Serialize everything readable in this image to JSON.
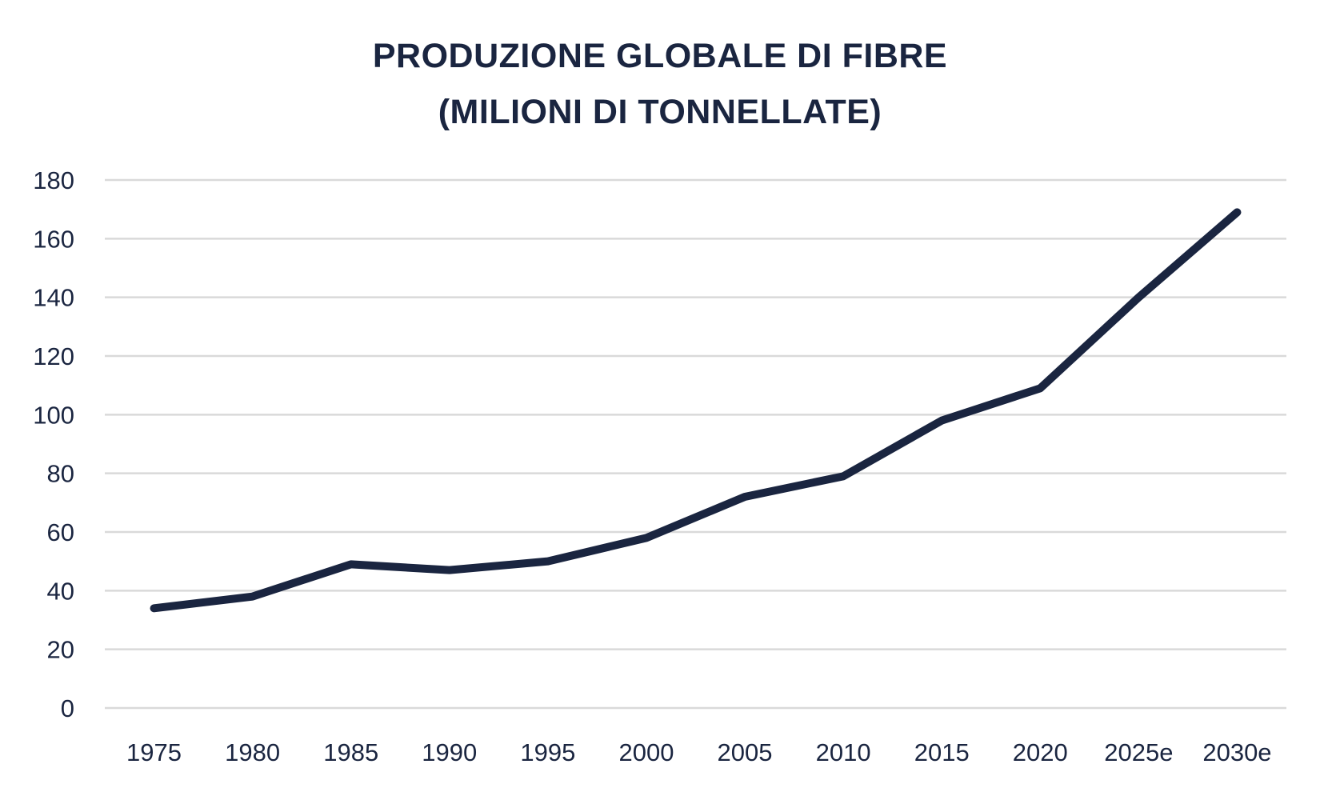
{
  "chart_data": {
    "type": "line",
    "title": [
      "PRODUZIONE GLOBALE DI FIBRE",
      "(MILIONI DI TONNELLATE)"
    ],
    "xlabel": "",
    "ylabel": "",
    "categories": [
      "1975",
      "1980",
      "1985",
      "1990",
      "1995",
      "2000",
      "2005",
      "2010",
      "2015",
      "2020",
      "2025e",
      "2030e"
    ],
    "series": [
      {
        "values": [
          34,
          38,
          49,
          47,
          50,
          58,
          72,
          79,
          98,
          109,
          140,
          169
        ]
      }
    ],
    "ylim": [
      0,
      180
    ],
    "yticks": [
      0,
      20,
      40,
      60,
      80,
      100,
      120,
      140,
      160,
      180
    ],
    "grid": true,
    "legend": "none",
    "colors": {
      "line": "#1a2540",
      "grid": "#d9d9d9",
      "text": "#1a2540"
    }
  }
}
